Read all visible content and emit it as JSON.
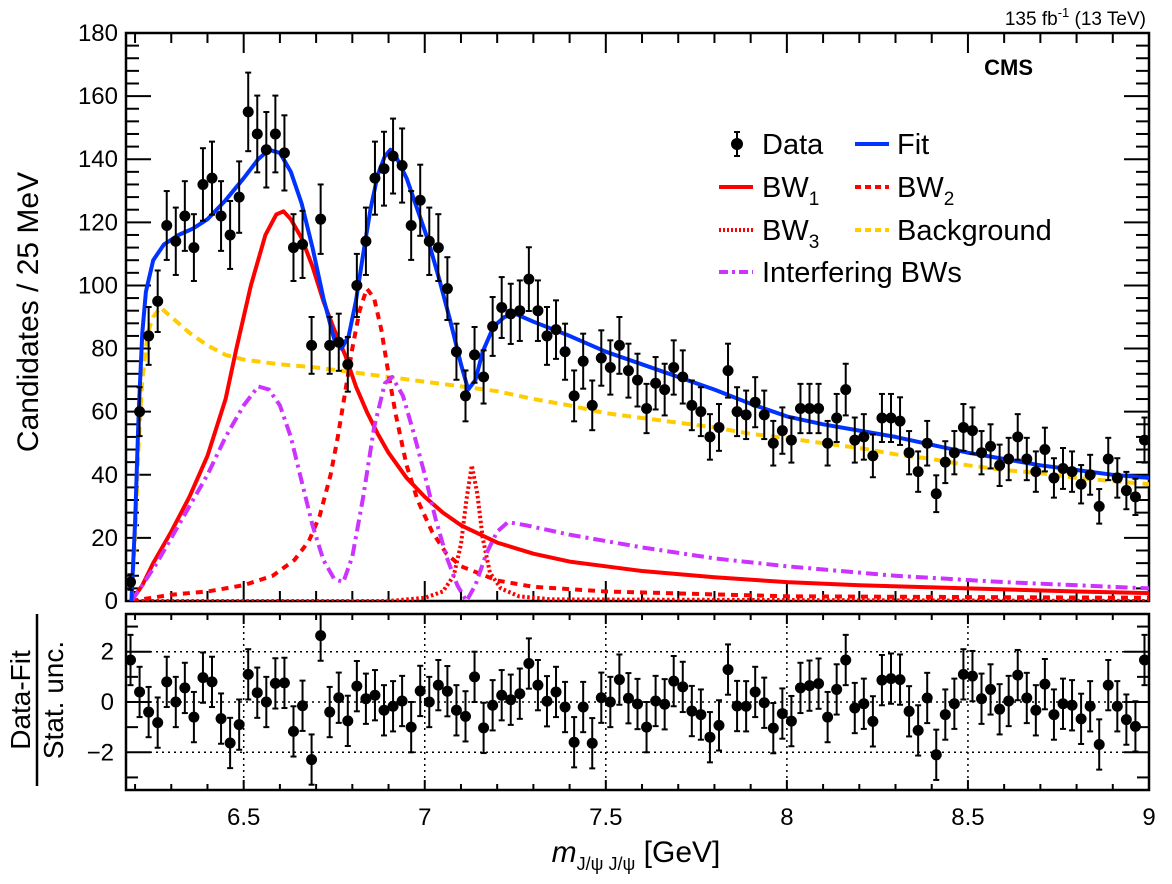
{
  "header": {
    "lumi": "135 fb",
    "lumi_sup": "-1",
    "energy": "(13 TeV)",
    "experiment": "CMS"
  },
  "legend": {
    "data": "Data",
    "fit": "Fit",
    "bw1": "BW",
    "bw1_sub": "1",
    "bw2": "BW",
    "bw2_sub": "2",
    "bw3": "BW",
    "bw3_sub": "3",
    "background": "Background",
    "interfering": "Interfering BWs"
  },
  "colors": {
    "data": "#000000",
    "fit": "#0033ff",
    "bw": "#ff0000",
    "background": "#ffcc00",
    "interfering": "#cc33ff"
  },
  "chart_data": [
    {
      "type": "scatter",
      "panel": "main",
      "ylabel": "Candidates / 25 MeV",
      "xlim": [
        6.175,
        9.0
      ],
      "ylim": [
        0,
        180
      ],
      "yticks": [
        "0",
        "20",
        "40",
        "60",
        "80",
        "100",
        "120",
        "140",
        "160",
        "180"
      ],
      "bin_width_gev": 0.025,
      "first_bin_center": 6.1875,
      "data": {
        "name": "Data",
        "values": [
          6,
          60,
          84,
          95,
          119,
          114,
          122,
          112,
          132,
          134,
          122,
          116,
          128,
          155,
          148,
          143,
          148,
          142,
          112,
          113,
          81,
          121,
          81,
          82,
          75,
          100,
          114,
          134,
          137,
          141,
          138,
          119,
          127,
          114,
          112,
          99,
          79,
          65,
          78,
          71,
          87,
          93,
          91,
          92,
          102,
          92,
          84,
          86,
          79,
          65,
          76,
          62,
          77,
          74,
          81,
          73,
          70,
          61,
          69,
          67,
          74,
          71,
          62,
          60,
          52,
          55,
          73,
          60,
          59,
          63,
          59,
          50,
          54,
          51,
          61,
          61,
          61,
          50,
          58,
          67,
          51,
          52,
          46,
          58,
          58,
          57,
          47,
          41,
          50,
          34,
          44,
          47,
          55,
          54,
          47,
          49,
          43,
          45,
          52,
          45,
          41,
          48,
          39,
          42,
          41,
          37,
          40,
          30,
          45,
          39,
          35,
          33,
          51
        ],
        "errors": "sqrt(N)"
      },
      "curves": [
        {
          "name": "Background",
          "style": "dashed",
          "points": [
            [
              6.19,
              0
            ],
            [
              6.2,
              20
            ],
            [
              6.21,
              50
            ],
            [
              6.22,
              70
            ],
            [
              6.235,
              85
            ],
            [
              6.25,
              90
            ],
            [
              6.27,
              93
            ],
            [
              6.3,
              90
            ],
            [
              6.35,
              85
            ],
            [
              6.4,
              81
            ],
            [
              6.45,
              78
            ],
            [
              6.5,
              76.5
            ],
            [
              6.6,
              75
            ],
            [
              6.7,
              74
            ],
            [
              6.8,
              72.5
            ],
            [
              6.9,
              71
            ],
            [
              7.0,
              69.5
            ],
            [
              7.1,
              68
            ],
            [
              7.2,
              66.5
            ],
            [
              7.3,
              64
            ],
            [
              7.4,
              62
            ],
            [
              7.5,
              59.5
            ],
            [
              7.6,
              58
            ],
            [
              7.7,
              56.5
            ],
            [
              7.8,
              55
            ],
            [
              7.9,
              53
            ],
            [
              8.0,
              51.6
            ],
            [
              8.1,
              50
            ],
            [
              8.2,
              48.5
            ],
            [
              8.3,
              46.5
            ],
            [
              8.4,
              45
            ],
            [
              8.5,
              43
            ],
            [
              8.6,
              41.5
            ],
            [
              8.7,
              40.5
            ],
            [
              8.8,
              39
            ],
            [
              8.9,
              38
            ],
            [
              9.0,
              37
            ]
          ]
        },
        {
          "name": "BW1",
          "style": "solid",
          "points": [
            [
              6.19,
              0
            ],
            [
              6.22,
              5
            ],
            [
              6.25,
              12
            ],
            [
              6.3,
              22
            ],
            [
              6.35,
              33
            ],
            [
              6.4,
              46
            ],
            [
              6.45,
              64
            ],
            [
              6.48,
              80
            ],
            [
              6.52,
              100
            ],
            [
              6.56,
              116
            ],
            [
              6.59,
              122.5
            ],
            [
              6.61,
              123.5
            ],
            [
              6.63,
              121
            ],
            [
              6.66,
              115
            ],
            [
              6.69,
              106
            ],
            [
              6.72,
              95
            ],
            [
              6.75,
              86
            ],
            [
              6.78,
              78
            ],
            [
              6.81,
              68
            ],
            [
              6.84,
              60
            ],
            [
              6.87,
              53
            ],
            [
              6.9,
              47
            ],
            [
              6.95,
              39
            ],
            [
              7.0,
              33
            ],
            [
              7.05,
              28
            ],
            [
              7.1,
              24
            ],
            [
              7.2,
              18.5
            ],
            [
              7.3,
              15
            ],
            [
              7.4,
              12.5
            ],
            [
              7.5,
              11
            ],
            [
              7.6,
              9.5
            ],
            [
              7.8,
              7.5
            ],
            [
              8.0,
              6
            ],
            [
              8.2,
              5
            ],
            [
              8.5,
              4
            ],
            [
              8.8,
              3
            ],
            [
              9.0,
              2.5
            ]
          ]
        },
        {
          "name": "BW2",
          "style": "dashed",
          "points": [
            [
              6.19,
              0
            ],
            [
              6.3,
              2
            ],
            [
              6.4,
              3
            ],
            [
              6.5,
              5
            ],
            [
              6.58,
              8
            ],
            [
              6.64,
              13
            ],
            [
              6.68,
              19
            ],
            [
              6.71,
              27
            ],
            [
              6.74,
              40
            ],
            [
              6.76,
              52
            ],
            [
              6.78,
              66
            ],
            [
              6.8,
              80
            ],
            [
              6.82,
              92
            ],
            [
              6.84,
              99
            ],
            [
              6.86,
              96
            ],
            [
              6.88,
              86
            ],
            [
              6.9,
              72
            ],
            [
              6.92,
              59
            ],
            [
              6.95,
              43
            ],
            [
              6.98,
              32
            ],
            [
              7.02,
              22
            ],
            [
              7.06,
              15
            ],
            [
              7.1,
              11
            ],
            [
              7.2,
              6.5
            ],
            [
              7.3,
              4.5
            ],
            [
              7.5,
              3
            ],
            [
              8.0,
              1.5
            ],
            [
              9.0,
              1
            ]
          ]
        },
        {
          "name": "BW3",
          "style": "dotted",
          "points": [
            [
              6.19,
              0
            ],
            [
              6.9,
              0
            ],
            [
              7.0,
              1
            ],
            [
              7.05,
              3
            ],
            [
              7.08,
              8
            ],
            [
              7.1,
              18
            ],
            [
              7.115,
              32
            ],
            [
              7.13,
              43
            ],
            [
              7.145,
              34
            ],
            [
              7.16,
              20
            ],
            [
              7.18,
              9
            ],
            [
              7.21,
              4
            ],
            [
              7.26,
              1.5
            ],
            [
              7.35,
              0.5
            ],
            [
              9.0,
              0
            ]
          ]
        },
        {
          "name": "Interfering BWs",
          "style": "dashdot",
          "points": [
            [
              6.19,
              0
            ],
            [
              6.22,
              5
            ],
            [
              6.26,
              12
            ],
            [
              6.3,
              20
            ],
            [
              6.35,
              30
            ],
            [
              6.4,
              40
            ],
            [
              6.45,
              52
            ],
            [
              6.5,
              62
            ],
            [
              6.54,
              68
            ],
            [
              6.57,
              67
            ],
            [
              6.6,
              62
            ],
            [
              6.63,
              52
            ],
            [
              6.66,
              38
            ],
            [
              6.69,
              24
            ],
            [
              6.72,
              13
            ],
            [
              6.75,
              7
            ],
            [
              6.775,
              6
            ],
            [
              6.8,
              14
            ],
            [
              6.83,
              33
            ],
            [
              6.86,
              55
            ],
            [
              6.89,
              69
            ],
            [
              6.91,
              71
            ],
            [
              6.94,
              65
            ],
            [
              6.97,
              53
            ],
            [
              7.0,
              40
            ],
            [
              7.03,
              26
            ],
            [
              7.06,
              14
            ],
            [
              7.09,
              5
            ],
            [
              7.115,
              0
            ],
            [
              7.14,
              5
            ],
            [
              7.17,
              15
            ],
            [
              7.2,
              22
            ],
            [
              7.23,
              25
            ],
            [
              7.28,
              24
            ],
            [
              7.4,
              21
            ],
            [
              7.6,
              17
            ],
            [
              7.8,
              13.5
            ],
            [
              8.0,
              11
            ],
            [
              8.3,
              8
            ],
            [
              8.6,
              6
            ],
            [
              9.0,
              4
            ]
          ]
        },
        {
          "name": "Fit",
          "style": "solid",
          "points": [
            [
              6.19,
              0
            ],
            [
              6.2,
              25
            ],
            [
              6.21,
              60
            ],
            [
              6.22,
              85
            ],
            [
              6.23,
              98
            ],
            [
              6.25,
              108
            ],
            [
              6.28,
              113
            ],
            [
              6.32,
              116
            ],
            [
              6.36,
              118
            ],
            [
              6.4,
              121
            ],
            [
              6.45,
              127
            ],
            [
              6.5,
              134
            ],
            [
              6.54,
              140
            ],
            [
              6.57,
              143
            ],
            [
              6.6,
              142
            ],
            [
              6.63,
              136
            ],
            [
              6.66,
              126
            ],
            [
              6.69,
              112
            ],
            [
              6.72,
              96
            ],
            [
              6.75,
              83
            ],
            [
              6.77,
              80
            ],
            [
              6.79,
              84
            ],
            [
              6.81,
              95
            ],
            [
              6.83,
              110
            ],
            [
              6.85,
              124
            ],
            [
              6.87,
              135
            ],
            [
              6.89,
              141
            ],
            [
              6.905,
              143
            ],
            [
              6.92,
              141
            ],
            [
              6.95,
              134
            ],
            [
              6.98,
              124
            ],
            [
              7.01,
              114
            ],
            [
              7.04,
              102
            ],
            [
              7.07,
              89
            ],
            [
              7.1,
              75
            ],
            [
              7.12,
              67
            ],
            [
              7.14,
              70
            ],
            [
              7.16,
              79
            ],
            [
              7.19,
              87
            ],
            [
              7.22,
              90
            ],
            [
              7.25,
              91
            ],
            [
              7.3,
              88.5
            ],
            [
              7.4,
              84
            ],
            [
              7.5,
              79
            ],
            [
              7.6,
              75
            ],
            [
              7.7,
              71
            ],
            [
              7.8,
              67
            ],
            [
              7.9,
              62.5
            ],
            [
              8.0,
              58.5
            ],
            [
              8.1,
              56
            ],
            [
              8.2,
              54
            ],
            [
              8.3,
              52
            ],
            [
              8.4,
              49.5
            ],
            [
              8.5,
              47
            ],
            [
              8.6,
              45
            ],
            [
              8.7,
              43
            ],
            [
              8.8,
              41.5
            ],
            [
              8.9,
              40
            ],
            [
              9.0,
              39
            ]
          ]
        }
      ]
    },
    {
      "type": "scatter",
      "panel": "pull",
      "ylabel_numerator": "Data-Fit",
      "ylabel_denominator": "Stat. unc.",
      "xlabel_main": "m",
      "xlabel_sub": "J/ψ J/ψ",
      "xlabel_unit": "[GeV]",
      "xlim": [
        6.175,
        9.0
      ],
      "ylim": [
        -3.5,
        3.5
      ],
      "xticks": [
        "6.5",
        "7",
        "7.5",
        "8",
        "8.5",
        "9"
      ],
      "yticks": [
        "2",
        "0",
        "−2"
      ],
      "grid": "dotted at y=±2,0 and major x ticks",
      "values": [
        1.67,
        0.4,
        -0.4,
        -0.82,
        0.8,
        0,
        0.56,
        -0.6,
        0.97,
        0.8,
        -0.66,
        -1.63,
        -0.9,
        1.1,
        0.37,
        0,
        0.74,
        0.76,
        -1.17,
        -0.15,
        -2.29,
        2.64,
        -0.4,
        0.17,
        -0.75,
        0.63,
        0.13,
        0.27,
        -0.33,
        -0.17,
        0.04,
        -1.0,
        0.44,
        0,
        0.67,
        0.43,
        -0.33,
        -0.57,
        1.0,
        -1.03,
        -0.13,
        0.27,
        0.09,
        0.33,
        1.53,
        0.67,
        0.03,
        0.4,
        -0.2,
        -1.6,
        -0.2,
        -1.64,
        0.17,
        0,
        0.89,
        0.15,
        -0.08,
        -1.0,
        0.04,
        -0.09,
        0.83,
        0.6,
        -0.36,
        -0.5,
        -1.4,
        -0.93,
        1.29,
        -0.16,
        -0.17,
        0.4,
        -0.03,
        -1.04,
        -0.46,
        -0.76,
        0.56,
        0.65,
        0.73,
        -0.6,
        0.5,
        1.67,
        -0.24,
        -0.07,
        -0.77,
        0.87,
        0.93,
        0.89,
        -0.37,
        -1.13,
        0.16,
        -2.1,
        -0.5,
        -0.07,
        1.1,
        1.03,
        0.13,
        0.5,
        -0.29,
        0.04,
        1.07,
        0.16,
        -0.33,
        0.71,
        -0.5,
        -0.07,
        -0.13,
        -0.67,
        -0.17,
        -1.69,
        0.67,
        -0.17,
        -0.7,
        -0.97,
        1.67
      ],
      "errors": 1
    }
  ]
}
